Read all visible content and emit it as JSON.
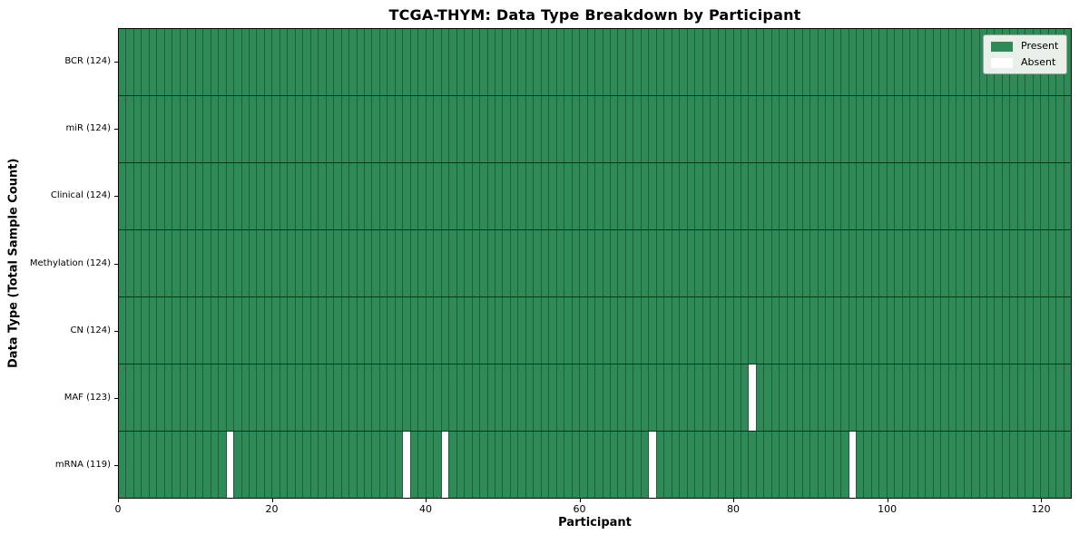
{
  "chart_data": {
    "type": "heatmap",
    "title": "TCGA-THYM: Data Type Breakdown by Participant",
    "xlabel": "Participant",
    "ylabel": "Data Type (Total Sample Count)",
    "x_ticks": [
      0,
      20,
      40,
      60,
      80,
      100,
      120
    ],
    "xlim": [
      0,
      124
    ],
    "n_participants": 124,
    "grid": false,
    "legend_position": "upper right",
    "rows": [
      {
        "label": "BCR (124)",
        "present_count": 124,
        "absent_participants": []
      },
      {
        "label": "miR (124)",
        "present_count": 124,
        "absent_participants": []
      },
      {
        "label": "Clinical (124)",
        "present_count": 124,
        "absent_participants": []
      },
      {
        "label": "Methylation (124)",
        "present_count": 124,
        "absent_participants": []
      },
      {
        "label": "CN (124)",
        "present_count": 124,
        "absent_participants": []
      },
      {
        "label": "MAF (123)",
        "present_count": 123,
        "absent_participants": [
          82
        ]
      },
      {
        "label": "mRNA (119)",
        "present_count": 119,
        "absent_participants": [
          14,
          37,
          42,
          69,
          95
        ]
      }
    ],
    "legend": [
      {
        "label": "Present",
        "color": "#2e8b57"
      },
      {
        "label": "Absent",
        "color": "#ffffff"
      }
    ],
    "colors": {
      "present": "#2e8b57",
      "absent": "#ffffff",
      "cell_border": "#27593b",
      "row_border": "#14271a",
      "axis": "#000000"
    }
  }
}
